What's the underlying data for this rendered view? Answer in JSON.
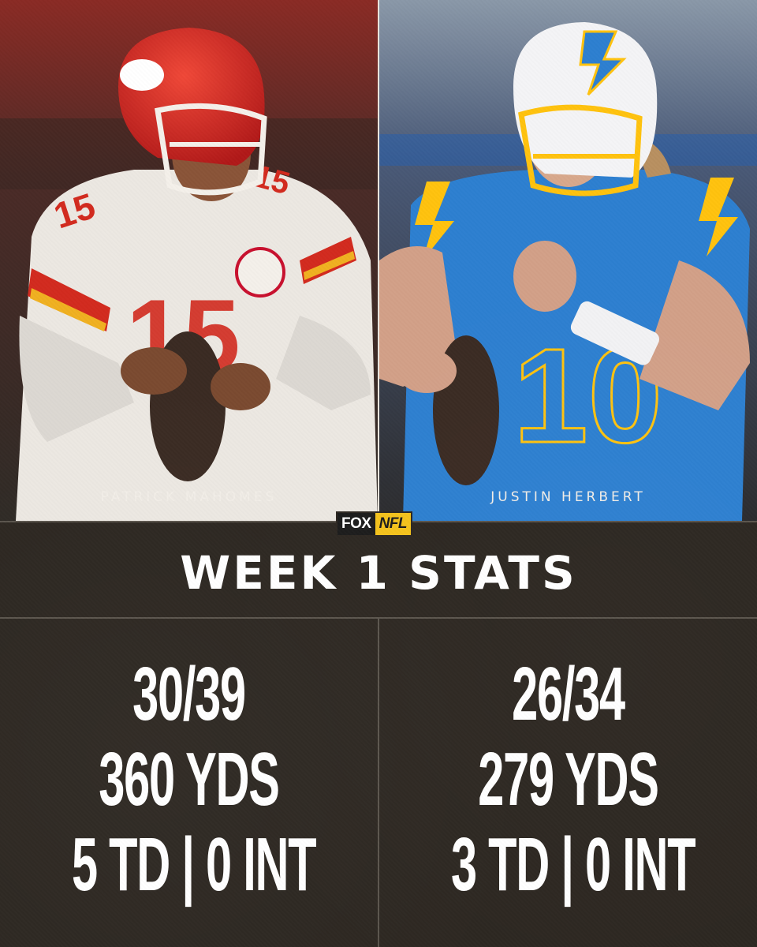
{
  "players": [
    {
      "name": "PATRICK MAHOMES",
      "stats": [
        "30/39",
        "360 YDS",
        "5 TD | 0 INT"
      ],
      "team_colors": {
        "primary": "#c8102e",
        "secondary": "#ffb612",
        "jersey": "#f0ece6"
      }
    },
    {
      "name": "JUSTIN HERBERT",
      "stats": [
        "26/34",
        "279 YDS",
        "3 TD | 0 INT"
      ],
      "team_colors": {
        "primary": "#2d7fd0",
        "secondary": "#ffc20e",
        "jersey": "#2d7fd0"
      }
    }
  ],
  "logo": {
    "fox": "FOX",
    "nfl": "NFL"
  },
  "title": "WEEK 1 STATS",
  "colors": {
    "background": "#2c2620",
    "text": "#ffffff",
    "divider": "#5a544c"
  }
}
